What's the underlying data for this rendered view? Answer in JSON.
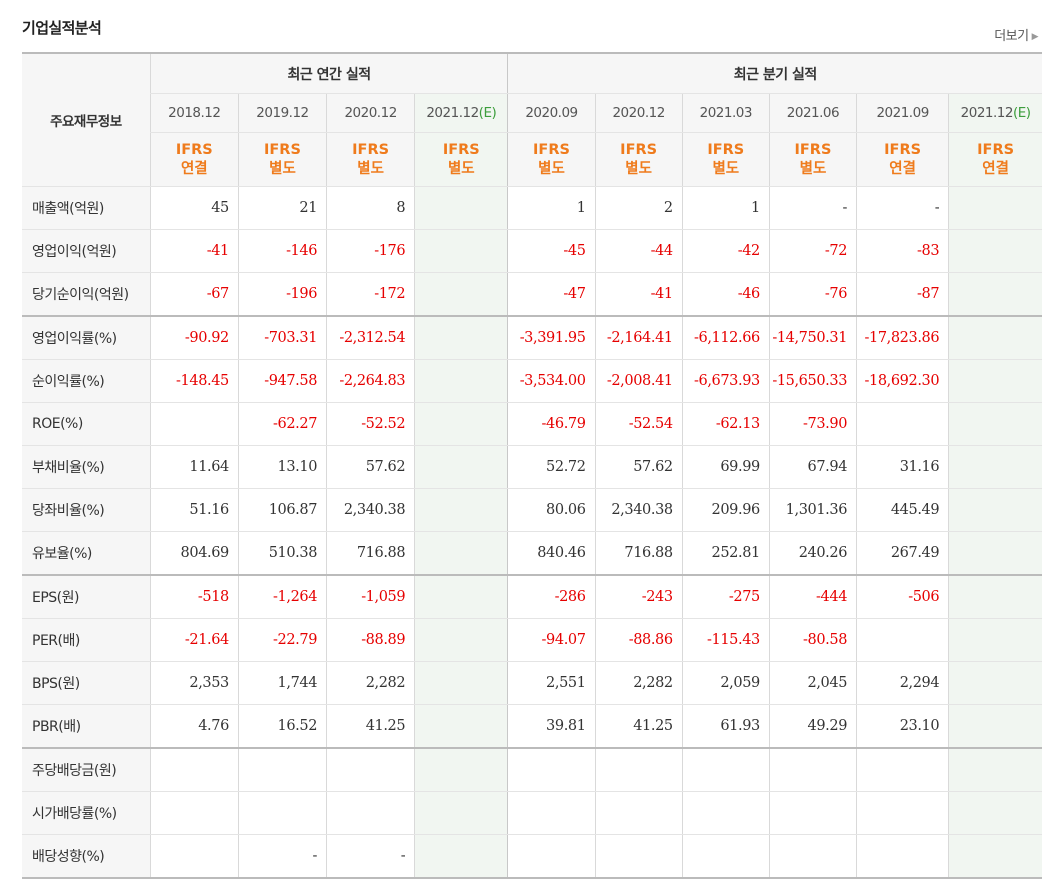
{
  "header": {
    "title": "기업실적분석",
    "more": "더보기"
  },
  "table": {
    "row_header": "주요재무정보",
    "annual_title": "최근 연간 실적",
    "quarter_title": "최근 분기 실적",
    "estimate_mark": "(E)",
    "periods": [
      {
        "date": "2018.12",
        "basis_1": "IFRS",
        "basis_2": "연결",
        "est": false
      },
      {
        "date": "2019.12",
        "basis_1": "IFRS",
        "basis_2": "별도",
        "est": false
      },
      {
        "date": "2020.12",
        "basis_1": "IFRS",
        "basis_2": "별도",
        "est": false
      },
      {
        "date": "2021.12",
        "basis_1": "IFRS",
        "basis_2": "별도",
        "est": true
      },
      {
        "date": "2020.09",
        "basis_1": "IFRS",
        "basis_2": "별도",
        "est": false
      },
      {
        "date": "2020.12",
        "basis_1": "IFRS",
        "basis_2": "별도",
        "est": false
      },
      {
        "date": "2021.03",
        "basis_1": "IFRS",
        "basis_2": "별도",
        "est": false
      },
      {
        "date": "2021.06",
        "basis_1": "IFRS",
        "basis_2": "별도",
        "est": false
      },
      {
        "date": "2021.09",
        "basis_1": "IFRS",
        "basis_2": "연결",
        "est": false
      },
      {
        "date": "2021.12",
        "basis_1": "IFRS",
        "basis_2": "연결",
        "est": true
      }
    ],
    "rows": [
      {
        "label": "매출액(억원)",
        "values": [
          "45",
          "21",
          "8",
          "",
          "1",
          "2",
          "1",
          "-",
          "-",
          ""
        ]
      },
      {
        "label": "영업이익(억원)",
        "values": [
          "-41",
          "-146",
          "-176",
          "",
          "-45",
          "-44",
          "-42",
          "-72",
          "-83",
          ""
        ]
      },
      {
        "label": "당기순이익(억원)",
        "values": [
          "-67",
          "-196",
          "-172",
          "",
          "-47",
          "-41",
          "-46",
          "-76",
          "-87",
          ""
        ]
      },
      {
        "label": "영업이익률(%)",
        "values": [
          "-90.92",
          "-703.31",
          "-2,312.54",
          "",
          "-3,391.95",
          "-2,164.41",
          "-6,112.66",
          "-14,750.31",
          "-17,823.86",
          ""
        ]
      },
      {
        "label": "순이익률(%)",
        "values": [
          "-148.45",
          "-947.58",
          "-2,264.83",
          "",
          "-3,534.00",
          "-2,008.41",
          "-6,673.93",
          "-15,650.33",
          "-18,692.30",
          ""
        ]
      },
      {
        "label": "ROE(%)",
        "values": [
          "",
          "-62.27",
          "-52.52",
          "",
          "-46.79",
          "-52.54",
          "-62.13",
          "-73.90",
          "",
          ""
        ]
      },
      {
        "label": "부채비율(%)",
        "values": [
          "11.64",
          "13.10",
          "57.62",
          "",
          "52.72",
          "57.62",
          "69.99",
          "67.94",
          "31.16",
          ""
        ]
      },
      {
        "label": "당좌비율(%)",
        "values": [
          "51.16",
          "106.87",
          "2,340.38",
          "",
          "80.06",
          "2,340.38",
          "209.96",
          "1,301.36",
          "445.49",
          ""
        ]
      },
      {
        "label": "유보율(%)",
        "values": [
          "804.69",
          "510.38",
          "716.88",
          "",
          "840.46",
          "716.88",
          "252.81",
          "240.26",
          "267.49",
          ""
        ]
      },
      {
        "label": "EPS(원)",
        "values": [
          "-518",
          "-1,264",
          "-1,059",
          "",
          "-286",
          "-243",
          "-275",
          "-444",
          "-506",
          ""
        ]
      },
      {
        "label": "PER(배)",
        "values": [
          "-21.64",
          "-22.79",
          "-88.89",
          "",
          "-94.07",
          "-88.86",
          "-115.43",
          "-80.58",
          "",
          ""
        ]
      },
      {
        "label": "BPS(원)",
        "values": [
          "2,353",
          "1,744",
          "2,282",
          "",
          "2,551",
          "2,282",
          "2,059",
          "2,045",
          "2,294",
          ""
        ]
      },
      {
        "label": "PBR(배)",
        "values": [
          "4.76",
          "16.52",
          "41.25",
          "",
          "39.81",
          "41.25",
          "61.93",
          "49.29",
          "23.10",
          ""
        ]
      },
      {
        "label": "주당배당금(원)",
        "values": [
          "",
          "",
          "",
          "",
          "",
          "",
          "",
          "",
          "",
          ""
        ]
      },
      {
        "label": "시가배당률(%)",
        "values": [
          "",
          "",
          "",
          "",
          "",
          "",
          "",
          "",
          "",
          ""
        ]
      },
      {
        "label": "배당성향(%)",
        "values": [
          "",
          "-",
          "-",
          "",
          "",
          "",
          "",
          "",
          "",
          ""
        ]
      }
    ]
  },
  "colors": {
    "negative": "#e60000",
    "ifrs": "#ef7b1c",
    "estimate": "#3d9e3d"
  }
}
